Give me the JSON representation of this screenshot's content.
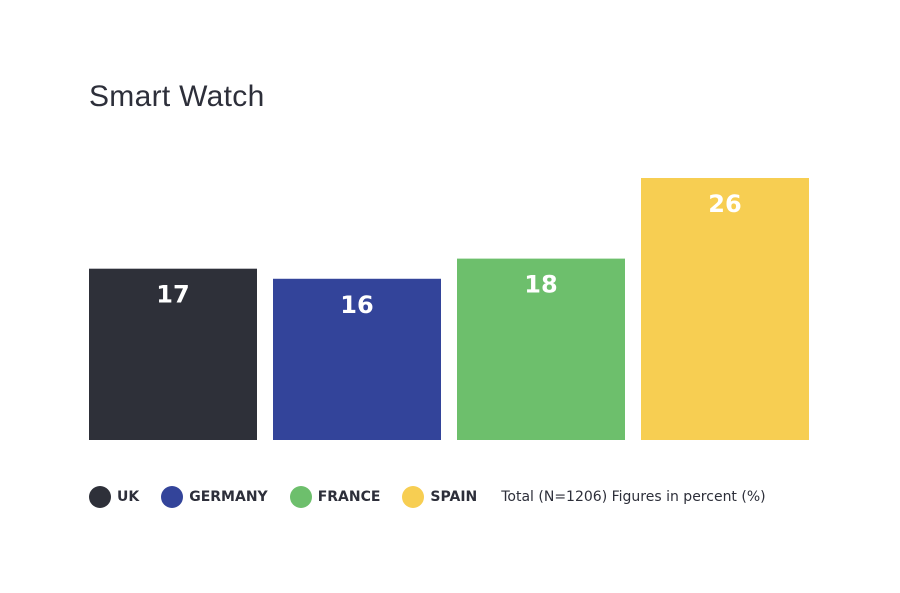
{
  "chart_data": {
    "type": "bar",
    "title": "Smart Watch",
    "categories": [
      "UK",
      "GERMANY",
      "FRANCE",
      "SPAIN"
    ],
    "values": [
      17,
      16,
      18,
      26
    ],
    "colors": [
      "#2e3039",
      "#33449a",
      "#6dbf6c",
      "#f7ce52"
    ],
    "ylim": [
      0,
      26
    ],
    "grid": false,
    "legend_position": "bottom",
    "note": "Total (N=1206) Figures in percent (%)"
  }
}
